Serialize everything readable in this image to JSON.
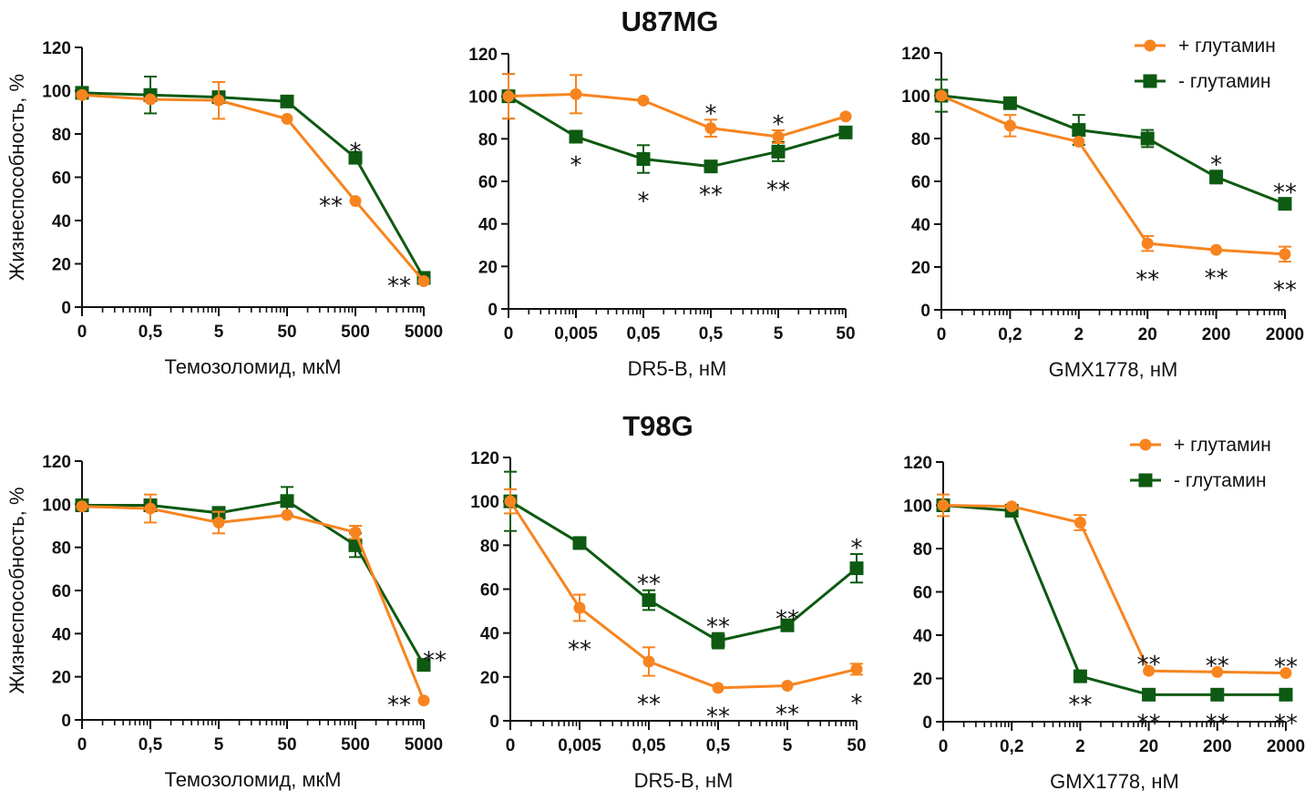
{
  "figure": {
    "colors": {
      "plus_glutamine": "#f7841f",
      "minus_glutamine": "#0e5a12",
      "axis": "#111111"
    },
    "legend": {
      "plus_label": "+ глутамин",
      "minus_label": "- глутамин"
    }
  },
  "chart_data": [
    {
      "type": "line",
      "row": "U87MG",
      "row_title": "U87MG",
      "show_title": false,
      "title": "",
      "xlabel": "Темозоломид, мкМ",
      "ylabel": "Жизнеспособность, %",
      "x_ticks": [
        "0",
        "0,5",
        "5",
        "50",
        "500",
        "5000"
      ],
      "x_scale": "log (first tick = 0)",
      "ylim": [
        0,
        120
      ],
      "y_ticks": [
        0,
        20,
        40,
        60,
        80,
        100,
        120
      ],
      "grid": false,
      "legend": "none",
      "series": [
        {
          "name": "+ глутамин",
          "marker": "circle",
          "values": [
            98,
            96,
            95.5,
            87,
            49,
            12
          ],
          "errors": [
            0,
            0,
            8.5,
            0,
            0,
            0
          ]
        },
        {
          "name": "- глутамин",
          "marker": "square",
          "values": [
            99,
            98,
            97,
            95,
            69,
            13.5
          ],
          "errors": [
            0,
            8.5,
            0,
            0,
            0,
            0
          ]
        }
      ],
      "annotations": [
        {
          "text": "*",
          "x_index": 4,
          "series": "- глутамин",
          "pos": "above"
        },
        {
          "text": "**",
          "x_index": 4,
          "series": "+ глутамин",
          "pos": "left"
        },
        {
          "text": "**",
          "x_index": 5,
          "series": "+ глутамин",
          "pos": "left"
        }
      ]
    },
    {
      "type": "line",
      "row": "U87MG",
      "row_title": "U87MG",
      "show_title": true,
      "title": "U87MG",
      "xlabel": "DR5-B, нМ",
      "ylabel": "",
      "x_ticks": [
        "0",
        "0,005",
        "0,05",
        "0,5",
        "5",
        "50"
      ],
      "x_scale": "log (first tick = 0)",
      "ylim": [
        0,
        120
      ],
      "y_ticks": [
        0,
        20,
        40,
        60,
        80,
        100,
        120
      ],
      "grid": false,
      "legend": "none",
      "series": [
        {
          "name": "+ глутамин",
          "marker": "circle",
          "values": [
            100,
            101,
            98,
            85,
            81,
            90.5
          ],
          "errors": [
            10.5,
            9,
            0,
            4,
            3,
            0
          ]
        },
        {
          "name": "- глутамин",
          "marker": "square",
          "values": [
            100,
            81,
            70.5,
            67,
            74,
            83
          ],
          "errors": [
            10.5,
            0,
            6.5,
            0,
            4.5,
            0
          ]
        }
      ],
      "annotations": [
        {
          "text": "*",
          "x_index": 1,
          "series": "- глутамин",
          "pos": "below"
        },
        {
          "text": "*",
          "x_index": 2,
          "series": "- глутамин",
          "pos": "below"
        },
        {
          "text": "*",
          "x_index": 3,
          "series": "+ глутамин",
          "pos": "above"
        },
        {
          "text": "**",
          "x_index": 3,
          "series": "- глутамин",
          "pos": "below"
        },
        {
          "text": "*",
          "x_index": 4,
          "series": "+ глутамин",
          "pos": "above"
        },
        {
          "text": "**",
          "x_index": 4,
          "series": "- глутамин",
          "pos": "below"
        }
      ]
    },
    {
      "type": "line",
      "row": "U87MG",
      "row_title": "U87MG",
      "show_title": false,
      "title": "",
      "xlabel": "GMX1778, нМ",
      "ylabel": "",
      "x_ticks": [
        "0",
        "0,2",
        "2",
        "20",
        "200",
        "2000"
      ],
      "x_scale": "log (first tick = 0)",
      "ylim": [
        0,
        120
      ],
      "y_ticks": [
        0,
        20,
        40,
        60,
        80,
        100,
        120
      ],
      "grid": false,
      "legend": "top-right",
      "series": [
        {
          "name": "+ глутамин",
          "marker": "circle",
          "values": [
            100,
            86,
            78.5,
            31,
            28,
            26
          ],
          "errors": [
            0,
            5,
            0,
            3.5,
            0,
            3.5
          ]
        },
        {
          "name": "- глутамин",
          "marker": "square",
          "values": [
            100,
            96.5,
            84,
            80,
            62,
            49.5
          ],
          "errors": [
            7.5,
            0,
            7,
            4,
            3,
            2.5
          ]
        }
      ],
      "annotations": [
        {
          "text": "**",
          "x_index": 3,
          "series": "+ глутамин",
          "pos": "below"
        },
        {
          "text": "*",
          "x_index": 4,
          "series": "- глутамин",
          "pos": "above"
        },
        {
          "text": "**",
          "x_index": 4,
          "series": "+ глутамин",
          "pos": "below"
        },
        {
          "text": "**",
          "x_index": 5,
          "series": "- глутамин",
          "pos": "above"
        },
        {
          "text": "**",
          "x_index": 5,
          "series": "+ глутамин",
          "pos": "below"
        }
      ]
    },
    {
      "type": "line",
      "row": "T98G",
      "row_title": "T98G",
      "show_title": false,
      "title": "",
      "xlabel": "Темозоломид, мкМ",
      "ylabel": "Жизнеспособность, %",
      "x_ticks": [
        "0",
        "0,5",
        "5",
        "50",
        "500",
        "5000"
      ],
      "x_scale": "log (first tick = 0)",
      "ylim": [
        0,
        120
      ],
      "y_ticks": [
        0,
        20,
        40,
        60,
        80,
        100,
        120
      ],
      "grid": false,
      "legend": "none",
      "series": [
        {
          "name": "+ глутамин",
          "marker": "circle",
          "values": [
            99,
            98,
            91.5,
            95,
            87,
            9
          ],
          "errors": [
            0,
            6.5,
            5,
            0,
            3,
            0
          ]
        },
        {
          "name": "- глутамин",
          "marker": "square",
          "values": [
            99.5,
            99.5,
            96,
            101.5,
            81,
            25.5
          ],
          "errors": [
            0,
            0,
            0,
            6.5,
            5.5,
            0
          ]
        }
      ],
      "annotations": [
        {
          "text": "**",
          "x_index": 5,
          "series": "- глутамин",
          "pos": "above-right"
        },
        {
          "text": "**",
          "x_index": 5,
          "series": "+ глутамин",
          "pos": "left"
        }
      ]
    },
    {
      "type": "line",
      "row": "T98G",
      "row_title": "T98G",
      "show_title": true,
      "title": "T98G",
      "xlabel": "DR5-B, нМ",
      "ylabel": "",
      "x_ticks": [
        "0",
        "0,005",
        "0,05",
        "0,5",
        "5",
        "50"
      ],
      "x_scale": "log (first tick = 0)",
      "ylim": [
        0,
        120
      ],
      "y_ticks": [
        0,
        20,
        40,
        60,
        80,
        100,
        120
      ],
      "grid": false,
      "legend": "none",
      "series": [
        {
          "name": "+ глутамин",
          "marker": "circle",
          "values": [
            100,
            51.5,
            27,
            15,
            16,
            23.5
          ],
          "errors": [
            5.5,
            6,
            6.5,
            0,
            0,
            2.5
          ]
        },
        {
          "name": "- глутамин",
          "marker": "square",
          "values": [
            100,
            81,
            55,
            36.5,
            43.5,
            69.5
          ],
          "errors": [
            13.5,
            0,
            4.5,
            3.5,
            0,
            6.5
          ]
        }
      ],
      "annotations": [
        {
          "text": "**",
          "x_index": 1,
          "series": "+ глутамин",
          "pos": "below"
        },
        {
          "text": "**",
          "x_index": 2,
          "series": "- глутамин",
          "pos": "above"
        },
        {
          "text": "**",
          "x_index": 2,
          "series": "+ глутамин",
          "pos": "below"
        },
        {
          "text": "**",
          "x_index": 3,
          "series": "- глутамин",
          "pos": "above"
        },
        {
          "text": "**",
          "x_index": 3,
          "series": "+ глутамин",
          "pos": "below"
        },
        {
          "text": "**",
          "x_index": 4,
          "series": "- глутамин",
          "pos": "above"
        },
        {
          "text": "**",
          "x_index": 4,
          "series": "+ глутамин",
          "pos": "below"
        },
        {
          "text": "*",
          "x_index": 5,
          "series": "- глутамин",
          "pos": "above"
        },
        {
          "text": "*",
          "x_index": 5,
          "series": "+ глутамин",
          "pos": "below"
        }
      ]
    },
    {
      "type": "line",
      "row": "T98G",
      "row_title": "T98G",
      "show_title": false,
      "title": "",
      "xlabel": "GMX1778, нМ",
      "ylabel": "",
      "x_ticks": [
        "0",
        "0,2",
        "2",
        "20",
        "200",
        "2000"
      ],
      "x_scale": "log (first tick = 0)",
      "ylim": [
        0,
        120
      ],
      "y_ticks": [
        0,
        20,
        40,
        60,
        80,
        100,
        120
      ],
      "grid": false,
      "legend": "top-right",
      "series": [
        {
          "name": "+ глутамин",
          "marker": "circle",
          "values": [
            100,
            99.5,
            92,
            23.5,
            23,
            22.5
          ],
          "errors": [
            5,
            0,
            3.5,
            0,
            0,
            0
          ]
        },
        {
          "name": "- глутамин",
          "marker": "square",
          "values": [
            100,
            97.5,
            21,
            12.5,
            12.5,
            12.5
          ],
          "errors": [
            0,
            0,
            0,
            0,
            0,
            0
          ]
        }
      ],
      "annotations": [
        {
          "text": "**",
          "x_index": 2,
          "series": "- глутамин",
          "pos": "below"
        },
        {
          "text": "**",
          "x_index": 3,
          "series": "+ глутамин",
          "pos": "above"
        },
        {
          "text": "**",
          "x_index": 3,
          "series": "- глутамин",
          "pos": "below"
        },
        {
          "text": "**",
          "x_index": 4,
          "series": "+ глутамин",
          "pos": "above"
        },
        {
          "text": "**",
          "x_index": 4,
          "series": "- глутамин",
          "pos": "below"
        },
        {
          "text": "**",
          "x_index": 5,
          "series": "+ глутамин",
          "pos": "above"
        },
        {
          "text": "**",
          "x_index": 5,
          "series": "- глутамин",
          "pos": "below"
        }
      ]
    }
  ]
}
